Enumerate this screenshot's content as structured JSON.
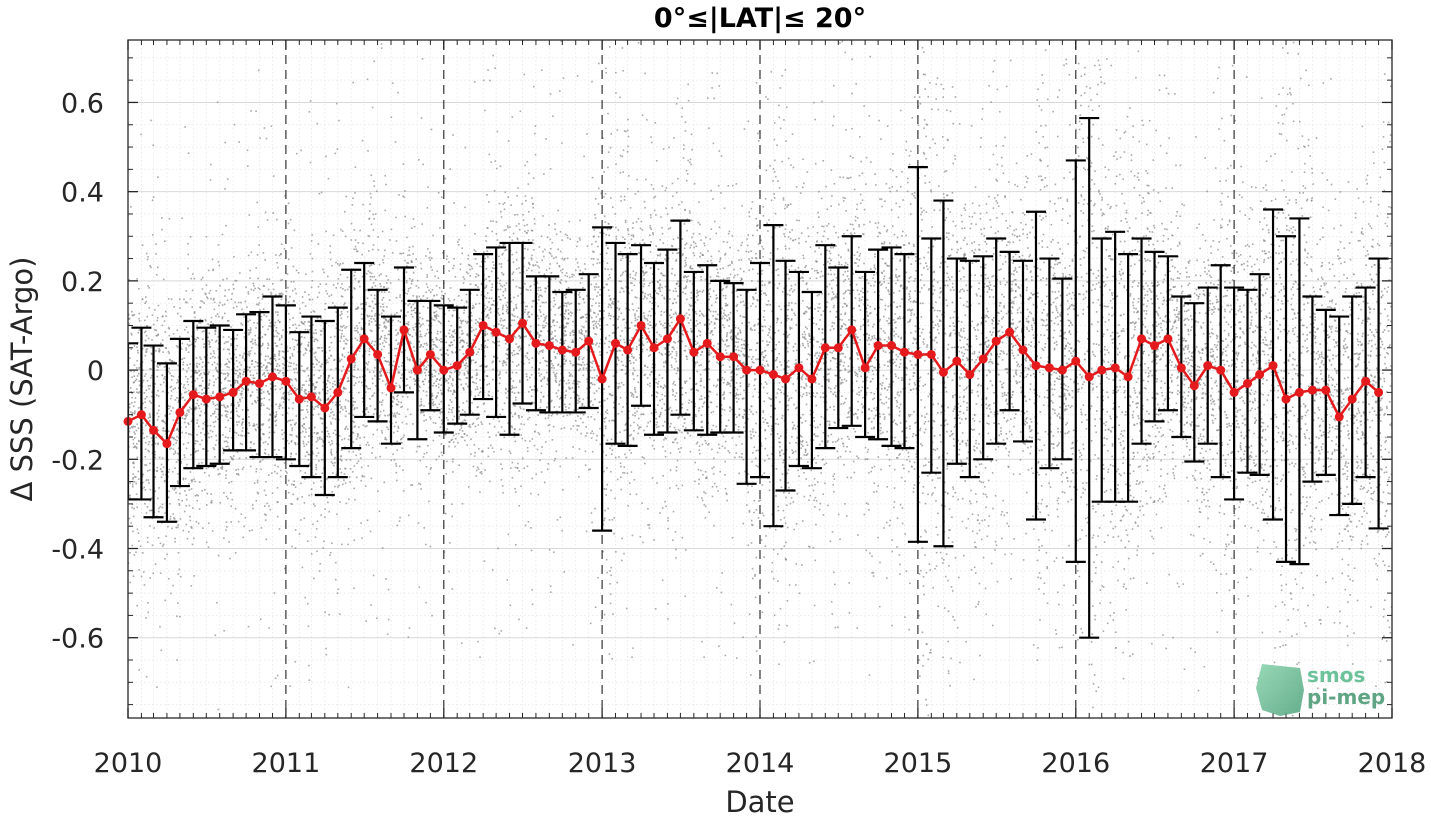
{
  "chart_data": {
    "type": "scatter",
    "title": "0°≤|LAT|≤ 20°",
    "xlabel": "Date",
    "ylabel": "Δ SSS (SAT-Argo)",
    "xlim": [
      "2010-01-01",
      "2018-01-01"
    ],
    "ylim": [
      -0.78,
      0.74
    ],
    "x_ticks": [
      "2010",
      "2011",
      "2012",
      "2013",
      "2014",
      "2015",
      "2016",
      "2017",
      "2018"
    ],
    "y_ticks": [
      -0.6,
      -0.4,
      -0.2,
      0,
      0.2,
      0.4,
      0.6
    ],
    "y_tick_labels": [
      "-0.6",
      "-0.4",
      "-0.2",
      "0",
      "0.2",
      "0.4",
      "0.6"
    ],
    "grid": true,
    "year_lines": "dashed",
    "colors": {
      "mean_line": "#e41a1c",
      "error_bars": "#000000",
      "scatter": "#8c8c8c"
    },
    "series": [
      {
        "style": "red line with dot markers and black error bars (monthly mean ± std)",
        "x": [
          "2010-01",
          "2010-02",
          "2010-03",
          "2010-04",
          "2010-05",
          "2010-06",
          "2010-07",
          "2010-08",
          "2010-09",
          "2010-10",
          "2010-11",
          "2010-12",
          "2011-01",
          "2011-02",
          "2011-03",
          "2011-04",
          "2011-05",
          "2011-06",
          "2011-07",
          "2011-08",
          "2011-09",
          "2011-10",
          "2011-11",
          "2011-12",
          "2012-01",
          "2012-02",
          "2012-03",
          "2012-04",
          "2012-05",
          "2012-06",
          "2012-07",
          "2012-08",
          "2012-09",
          "2012-10",
          "2012-11",
          "2012-12",
          "2013-01",
          "2013-02",
          "2013-03",
          "2013-04",
          "2013-05",
          "2013-06",
          "2013-07",
          "2013-08",
          "2013-09",
          "2013-10",
          "2013-11",
          "2013-12",
          "2014-01",
          "2014-02",
          "2014-03",
          "2014-04",
          "2014-05",
          "2014-06",
          "2014-07",
          "2014-08",
          "2014-09",
          "2014-10",
          "2014-11",
          "2014-12",
          "2015-01",
          "2015-02",
          "2015-03",
          "2015-04",
          "2015-05",
          "2015-06",
          "2015-07",
          "2015-08",
          "2015-09",
          "2015-10",
          "2015-11",
          "2015-12",
          "2016-01",
          "2016-02",
          "2016-03",
          "2016-04",
          "2016-05",
          "2016-06",
          "2016-07",
          "2016-08",
          "2016-09",
          "2016-10",
          "2016-11",
          "2016-12",
          "2017-01",
          "2017-02",
          "2017-03",
          "2017-04",
          "2017-05",
          "2017-06",
          "2017-07",
          "2017-08",
          "2017-09",
          "2017-10",
          "2017-11",
          "2017-12"
        ],
        "mean": [
          -0.115,
          -0.1,
          -0.135,
          -0.165,
          -0.095,
          -0.055,
          -0.065,
          -0.06,
          -0.05,
          -0.025,
          -0.03,
          -0.015,
          -0.025,
          -0.065,
          -0.06,
          -0.085,
          -0.05,
          0.025,
          0.07,
          0.035,
          -0.04,
          0.09,
          0.0,
          0.035,
          0.0,
          0.01,
          0.04,
          0.1,
          0.085,
          0.07,
          0.105,
          0.06,
          0.055,
          0.045,
          0.04,
          0.065,
          -0.02,
          0.06,
          0.045,
          0.1,
          0.05,
          0.07,
          0.115,
          0.04,
          0.06,
          0.03,
          0.03,
          0.0,
          0.0,
          -0.01,
          -0.02,
          0.005,
          -0.02,
          0.05,
          0.05,
          0.09,
          0.005,
          0.055,
          0.055,
          0.04,
          0.035,
          0.035,
          -0.005,
          0.02,
          -0.01,
          0.025,
          0.065,
          0.085,
          0.045,
          0.01,
          0.005,
          0.0,
          0.02,
          -0.015,
          0.0,
          0.005,
          -0.015,
          0.07,
          0.055,
          0.07,
          0.005,
          -0.035,
          0.01,
          0.0,
          -0.05,
          -0.03,
          -0.01,
          0.01,
          -0.065,
          -0.05,
          -0.045,
          -0.045,
          -0.105,
          -0.065,
          -0.025,
          -0.05
        ],
        "upper": [
          0.06,
          0.095,
          0.055,
          0.015,
          0.07,
          0.11,
          0.095,
          0.1,
          0.09,
          0.125,
          0.13,
          0.165,
          0.145,
          0.085,
          0.12,
          0.11,
          0.14,
          0.225,
          0.24,
          0.18,
          0.12,
          0.23,
          0.155,
          0.155,
          0.145,
          0.14,
          0.18,
          0.26,
          0.275,
          0.285,
          0.285,
          0.21,
          0.21,
          0.175,
          0.18,
          0.215,
          0.32,
          0.285,
          0.26,
          0.28,
          0.24,
          0.27,
          0.335,
          0.22,
          0.235,
          0.2,
          0.195,
          0.18,
          0.24,
          0.325,
          0.245,
          0.22,
          0.175,
          0.28,
          0.23,
          0.3,
          0.22,
          0.27,
          0.275,
          0.26,
          0.455,
          0.295,
          0.38,
          0.25,
          0.245,
          0.255,
          0.295,
          0.265,
          0.245,
          0.355,
          0.25,
          0.205,
          0.47,
          0.565,
          0.295,
          0.31,
          0.26,
          0.295,
          0.265,
          0.255,
          0.165,
          0.15,
          0.185,
          0.235,
          0.185,
          0.18,
          0.215,
          0.36,
          0.3,
          0.34,
          0.165,
          0.135,
          0.12,
          0.165,
          0.185,
          0.25
        ],
        "lower": [
          -0.29,
          -0.29,
          -0.33,
          -0.34,
          -0.26,
          -0.22,
          -0.215,
          -0.21,
          -0.18,
          -0.18,
          -0.195,
          -0.195,
          -0.2,
          -0.215,
          -0.24,
          -0.28,
          -0.24,
          -0.175,
          -0.105,
          -0.115,
          -0.165,
          -0.05,
          -0.155,
          -0.09,
          -0.14,
          -0.12,
          -0.1,
          -0.065,
          -0.105,
          -0.145,
          -0.075,
          -0.09,
          -0.095,
          -0.095,
          -0.095,
          -0.085,
          -0.36,
          -0.165,
          -0.17,
          -0.08,
          -0.145,
          -0.14,
          -0.1,
          -0.135,
          -0.145,
          -0.14,
          -0.14,
          -0.255,
          -0.24,
          -0.35,
          -0.27,
          -0.215,
          -0.22,
          -0.175,
          -0.13,
          -0.125,
          -0.15,
          -0.155,
          -0.17,
          -0.175,
          -0.385,
          -0.23,
          -0.395,
          -0.21,
          -0.24,
          -0.2,
          -0.165,
          -0.09,
          -0.16,
          -0.335,
          -0.22,
          -0.2,
          -0.43,
          -0.6,
          -0.295,
          -0.295,
          -0.295,
          -0.165,
          -0.115,
          -0.09,
          -0.15,
          -0.205,
          -0.165,
          -0.24,
          -0.29,
          -0.23,
          -0.235,
          -0.335,
          -0.43,
          -0.435,
          -0.25,
          -0.235,
          -0.325,
          -0.3,
          -0.24,
          -0.355
        ]
      }
    ],
    "scatter_points": "dense cloud of individual collocation differences (grey dots) spread around the monthly means",
    "logo": {
      "line1": "smos",
      "line2": "pi-mep",
      "color": "#5fb48c"
    }
  }
}
